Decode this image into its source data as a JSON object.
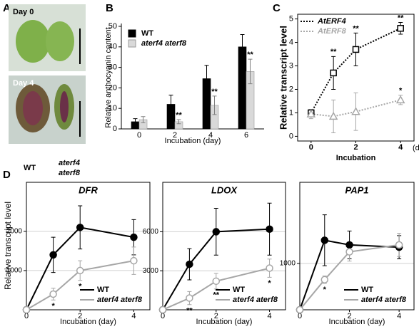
{
  "panel_labels": [
    "A",
    "B",
    "C",
    "D"
  ],
  "photo": {
    "day0": "Day 0",
    "day4": "Day 4",
    "wt": "WT",
    "mutant_line1": "aterf4",
    "mutant_line2": "aterf8"
  },
  "figure_d": {
    "ylabel": "Relative transcript level"
  },
  "chart_data": [
    {
      "type": "bar",
      "ylabel": "Relative anthocyanin content",
      "xlabel": "Incubation (day)",
      "categories": [
        "0",
        "2",
        "4",
        "6"
      ],
      "ylim": [
        0,
        50
      ],
      "yticks": [
        0,
        10,
        20,
        30,
        40,
        50
      ],
      "legend": "upper left",
      "grid": false,
      "annotation_position": "above",
      "series": [
        {
          "name": "WT",
          "color": "#000000",
          "values": [
            3.5,
            12,
            24.5,
            40
          ],
          "errors": [
            1.5,
            4.5,
            6.5,
            6
          ],
          "annotations": [
            null,
            null,
            null,
            null
          ]
        },
        {
          "name": "aterf4 aterf8",
          "color": "#d9d9d9",
          "font_style": "italic",
          "values": [
            4.5,
            3.5,
            11.5,
            28
          ],
          "errors": [
            1.5,
            1,
            4.5,
            6
          ],
          "annotations": [
            null,
            "**",
            "**",
            "**"
          ]
        }
      ]
    },
    {
      "type": "line",
      "ylabel": "Relative transcript level",
      "xlabel": "Incubation",
      "xunit": "(day)",
      "x": [
        0,
        1,
        2,
        4
      ],
      "xlim": [
        -0.6,
        4.6
      ],
      "xticks": [
        0,
        2,
        4
      ],
      "ylim": [
        -0.2,
        5.2
      ],
      "yticks": [
        0,
        1,
        2,
        3,
        4,
        5
      ],
      "legend": "upper left",
      "grid": false,
      "annotation_position": "above",
      "series": [
        {
          "name": "AtERF4",
          "color": "#000000",
          "line": "dotted",
          "marker": "square",
          "filled": false,
          "font_style": "italic",
          "values": [
            1,
            2.7,
            3.7,
            4.6
          ],
          "errors": [
            0.15,
            0.7,
            0.7,
            0.25
          ],
          "annotations": [
            null,
            "**",
            "**",
            "**"
          ]
        },
        {
          "name": "AtERF8",
          "color": "#a6a6a6",
          "line": "dotted",
          "marker": "triangle",
          "filled": false,
          "font_style": "italic",
          "values": [
            0.95,
            0.85,
            1.05,
            1.55
          ],
          "errors": [
            0.2,
            0.7,
            0.8,
            0.2
          ],
          "annotations": [
            null,
            null,
            null,
            "*"
          ]
        }
      ]
    },
    {
      "type": "line",
      "title": "DFR",
      "xlabel": "Incubation (day)",
      "x": [
        0,
        1,
        2,
        4
      ],
      "xlim": [
        0,
        4.6
      ],
      "xticks": [
        0,
        2,
        4
      ],
      "ylim": [
        0,
        3250
      ],
      "yticks": [
        1000,
        2000
      ],
      "legend": "lower right",
      "grid": true,
      "annotation_position": "below",
      "series": [
        {
          "name": "WT",
          "color": "#000000",
          "line": "solid",
          "marker": "circle",
          "filled": true,
          "values": [
            0,
            1400,
            2100,
            1850
          ],
          "errors": [
            0,
            450,
            550,
            450
          ],
          "annotations": [
            null,
            null,
            null,
            null
          ]
        },
        {
          "name": "aterf4 aterf8",
          "color": "#a6a6a6",
          "line": "solid",
          "marker": "circle",
          "filled": false,
          "font_style": "italic",
          "values": [
            0,
            400,
            1000,
            1250
          ],
          "errors": [
            0,
            150,
            250,
            350
          ],
          "annotations": [
            null,
            "*",
            "*",
            null
          ]
        }
      ]
    },
    {
      "type": "line",
      "title": "LDOX",
      "xlabel": "Incubation (day)",
      "x": [
        0,
        1,
        2,
        4
      ],
      "xlim": [
        0,
        4.6
      ],
      "xticks": [
        0,
        2,
        4
      ],
      "ylim": [
        0,
        9800
      ],
      "yticks": [
        3000,
        6000
      ],
      "legend": "lower right",
      "grid": true,
      "annotation_position": "below",
      "series": [
        {
          "name": "WT",
          "color": "#000000",
          "line": "solid",
          "marker": "circle",
          "filled": true,
          "values": [
            0,
            3500,
            6000,
            6200
          ],
          "errors": [
            0,
            1200,
            1800,
            2000
          ],
          "annotations": [
            null,
            null,
            null,
            null
          ]
        },
        {
          "name": "aterf4 aterf8",
          "color": "#a6a6a6",
          "line": "solid",
          "marker": "circle",
          "filled": false,
          "font_style": "italic",
          "values": [
            0,
            900,
            2200,
            3200
          ],
          "errors": [
            0,
            500,
            600,
            700
          ],
          "annotations": [
            null,
            "**",
            "**",
            "*"
          ]
        }
      ]
    },
    {
      "type": "line",
      "title": "PAP1",
      "xlabel": "Incubation (day)",
      "x": [
        0,
        1,
        2,
        4
      ],
      "xlim": [
        0,
        4.6
      ],
      "xticks": [
        0,
        2,
        4
      ],
      "ylim": [
        0,
        2750
      ],
      "yticks": [
        1000
      ],
      "legend": "lower right",
      "grid": true,
      "annotation_position": "below",
      "series": [
        {
          "name": "WT",
          "color": "#000000",
          "line": "solid",
          "marker": "circle",
          "filled": true,
          "values": [
            0,
            1500,
            1400,
            1350
          ],
          "errors": [
            0,
            550,
            300,
            250
          ],
          "annotations": [
            null,
            null,
            null,
            null
          ]
        },
        {
          "name": "aterf4 aterf8",
          "color": "#a6a6a6",
          "line": "solid",
          "marker": "circle",
          "filled": false,
          "font_style": "italic",
          "values": [
            0,
            650,
            1250,
            1400
          ],
          "errors": [
            0,
            80,
            200,
            250
          ],
          "annotations": [
            null,
            "*",
            null,
            null
          ]
        }
      ]
    }
  ]
}
